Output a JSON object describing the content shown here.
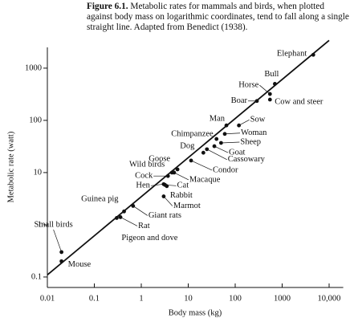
{
  "chart_data": {
    "type": "scatter",
    "caption_label": "Figure 6.1.",
    "caption": "Metabolic rates for mammals and birds, when plotted against body mass on logarithmic coordinates, tend to fall along a single straight line. Adapted from Benedict (1938).",
    "xlabel": "Body mass (kg)",
    "ylabel": "Metabolic rate (watt)",
    "xscale": "log",
    "yscale": "log",
    "xlim": [
      0.01,
      20000
    ],
    "ylim": [
      0.063,
      2500
    ],
    "xticks": [
      0.01,
      0.1,
      1,
      10,
      100,
      1000,
      {
        "value": 10000,
        "label": "10,000"
      }
    ],
    "yticks": [
      0.1,
      1,
      10,
      100,
      1000
    ],
    "color": "#111111",
    "labels": [
      "Elephant",
      "Bull",
      "Horse",
      "Boar",
      "Cow and steer",
      "Man",
      "Sow",
      "Woman",
      "Chimpanzee",
      "Sheep",
      "Goat",
      "Dog",
      "Cassowary",
      "Condor",
      "Goose",
      "Wild birds",
      "Macaque",
      "Cock",
      "Hen",
      "Cat",
      "Rabbit",
      "Marmot",
      "Giant rats",
      "Guinea pig",
      "Rat",
      "Pigeon and dove",
      "Small birds",
      "Mouse"
    ],
    "x": [
      4600,
      700,
      550,
      290,
      550,
      65,
      120,
      60,
      40,
      50,
      36,
      21,
      25,
      11.5,
      5.9,
      4.5,
      5,
      3.7,
      3,
      3.2,
      3.5,
      3,
      0.67,
      0.43,
      0.36,
      0.3,
      0.02,
      0.02
    ],
    "values": [
      1800,
      500,
      320,
      235,
      250,
      80,
      80,
      55,
      44,
      37,
      32,
      24,
      28,
      17,
      11.5,
      10,
      10,
      8.6,
      6,
      5.8,
      5.5,
      3.5,
      2.3,
      1.8,
      1.4,
      1.35,
      0.3,
      0.2
    ],
    "fit_line": {
      "x": [
        0.01,
        10000
      ],
      "y": [
        0.11,
        3400
      ]
    }
  }
}
